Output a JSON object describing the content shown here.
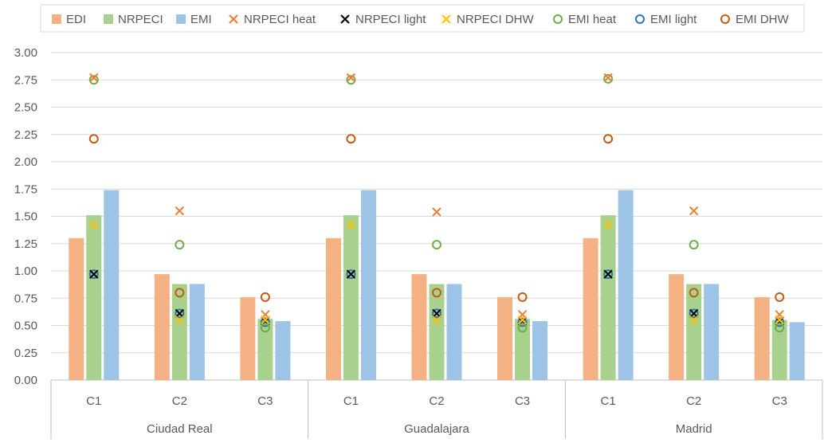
{
  "chart_data": {
    "type": "bar",
    "ylim": [
      0,
      3.0
    ],
    "y_ticks": [
      "0.00",
      "0.25",
      "0.50",
      "0.75",
      "1.00",
      "1.25",
      "1.50",
      "1.75",
      "2.00",
      "2.25",
      "2.50",
      "2.75",
      "3.00"
    ],
    "grid": true,
    "legend_position": "top",
    "groups": [
      "Ciudad Real",
      "Guadalajara",
      "Madrid"
    ],
    "subcategories": [
      "C1",
      "C2",
      "C3"
    ],
    "bar_series": [
      {
        "name": "EDI",
        "color": "#F4B183",
        "values": [
          [
            1.3,
            0.97,
            0.76
          ],
          [
            1.3,
            0.97,
            0.76
          ],
          [
            1.3,
            0.97,
            0.76
          ]
        ]
      },
      {
        "name": "NRPECI",
        "color": "#A9D18E",
        "values": [
          [
            1.51,
            0.88,
            0.56
          ],
          [
            1.51,
            0.88,
            0.56
          ],
          [
            1.51,
            0.88,
            0.55
          ]
        ]
      },
      {
        "name": "EMI",
        "color": "#9DC3E6",
        "values": [
          [
            1.74,
            0.88,
            0.54
          ],
          [
            1.74,
            0.88,
            0.54
          ],
          [
            1.74,
            0.88,
            0.53
          ]
        ]
      }
    ],
    "marker_series": [
      {
        "name": "NRPECI heat",
        "marker": "x",
        "color": "#ED7D31",
        "attach": "NRPECI",
        "values": [
          [
            2.77,
            1.55,
            0.6
          ],
          [
            2.77,
            1.54,
            0.6
          ],
          [
            2.77,
            1.55,
            0.6
          ]
        ]
      },
      {
        "name": "NRPECI light",
        "marker": "x",
        "color": "#000000",
        "attach": "NRPECI",
        "values": [
          [
            0.97,
            0.61,
            0.54
          ],
          [
            0.97,
            0.61,
            0.54
          ],
          [
            0.97,
            0.61,
            0.54
          ]
        ]
      },
      {
        "name": "NRPECI DHW",
        "marker": "x",
        "color": "#FFC000",
        "attach": "NRPECI",
        "values": [
          [
            1.42,
            0.55,
            0.55
          ],
          [
            1.42,
            0.55,
            0.55
          ],
          [
            1.42,
            0.55,
            0.55
          ]
        ]
      },
      {
        "name": "EMI heat",
        "marker": "o",
        "color": "#70AD47",
        "attach": "NRPECI",
        "values": [
          [
            2.75,
            1.24,
            0.48
          ],
          [
            2.75,
            1.24,
            0.48
          ],
          [
            2.76,
            1.24,
            0.48
          ]
        ]
      },
      {
        "name": "EMI light",
        "marker": "o",
        "color": "#2E75B6",
        "attach": "NRPECI",
        "values": [
          [
            0.97,
            0.61,
            0.53
          ],
          [
            0.97,
            0.61,
            0.53
          ],
          [
            0.97,
            0.61,
            0.53
          ]
        ]
      },
      {
        "name": "EMI DHW",
        "marker": "o",
        "color": "#C55A11",
        "attach": "NRPECI",
        "values": [
          [
            2.21,
            0.8,
            0.76
          ],
          [
            2.21,
            0.8,
            0.76
          ],
          [
            2.21,
            0.8,
            0.76
          ]
        ]
      }
    ]
  }
}
